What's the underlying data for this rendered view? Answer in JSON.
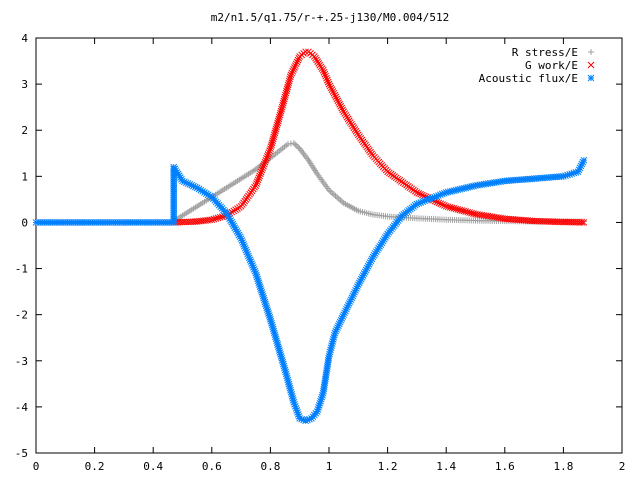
{
  "chart_data": {
    "type": "scatter",
    "title": "m2/n1.5/q1.75/r-+.25-j130/M0.004/512",
    "xlabel": "",
    "ylabel": "",
    "xlim": [
      0,
      2
    ],
    "ylim": [
      -5,
      4
    ],
    "x_ticks": [
      "0",
      "0.2",
      "0.4",
      "0.6",
      "0.8",
      "1",
      "1.2",
      "1.4",
      "1.6",
      "1.8",
      "2"
    ],
    "y_ticks": [
      "-5",
      "-4",
      "-3",
      "-2",
      "-1",
      "0",
      "1",
      "2",
      "3",
      "4"
    ],
    "grid": false,
    "legend_position": "top-right",
    "series": [
      {
        "name": "R stress/E",
        "marker": "plus",
        "color": "#a0a0a0",
        "x": [
          0.47,
          0.5,
          0.55,
          0.6,
          0.65,
          0.7,
          0.75,
          0.8,
          0.83,
          0.86,
          0.88,
          0.9,
          0.93,
          0.96,
          1.0,
          1.05,
          1.1,
          1.15,
          1.2,
          1.3,
          1.4,
          1.5,
          1.6,
          1.7,
          1.8,
          1.87
        ],
        "y": [
          0.02,
          0.15,
          0.35,
          0.55,
          0.75,
          0.95,
          1.15,
          1.4,
          1.55,
          1.7,
          1.72,
          1.6,
          1.35,
          1.05,
          0.7,
          0.42,
          0.25,
          0.17,
          0.13,
          0.09,
          0.06,
          0.04,
          0.03,
          0.02,
          0.02,
          0.02
        ]
      },
      {
        "name": "G work/E",
        "marker": "cross",
        "color": "#ff0000",
        "x": [
          0.47,
          0.55,
          0.6,
          0.65,
          0.7,
          0.75,
          0.8,
          0.84,
          0.87,
          0.9,
          0.92,
          0.93,
          0.95,
          0.98,
          1.0,
          1.05,
          1.1,
          1.15,
          1.2,
          1.3,
          1.4,
          1.5,
          1.6,
          1.7,
          1.8,
          1.87
        ],
        "y": [
          0.0,
          0.02,
          0.06,
          0.15,
          0.35,
          0.8,
          1.6,
          2.5,
          3.2,
          3.6,
          3.7,
          3.7,
          3.6,
          3.3,
          3.0,
          2.4,
          1.9,
          1.45,
          1.1,
          0.65,
          0.35,
          0.18,
          0.08,
          0.03,
          0.01,
          0.0
        ]
      },
      {
        "name": "Acoustic flux/E",
        "marker": "star",
        "color": "#0080ff",
        "x": [
          0.0,
          0.1,
          0.2,
          0.3,
          0.4,
          0.47,
          0.47,
          0.5,
          0.55,
          0.6,
          0.65,
          0.7,
          0.75,
          0.8,
          0.85,
          0.88,
          0.9,
          0.92,
          0.94,
          0.96,
          0.98,
          1.0,
          1.02,
          1.05,
          1.1,
          1.15,
          1.2,
          1.25,
          1.3,
          1.4,
          1.5,
          1.6,
          1.7,
          1.8,
          1.85,
          1.87
        ],
        "y": [
          0.0,
          0.0,
          0.0,
          0.0,
          0.0,
          0.0,
          1.2,
          0.9,
          0.75,
          0.55,
          0.2,
          -0.35,
          -1.1,
          -2.1,
          -3.2,
          -3.9,
          -4.25,
          -4.3,
          -4.25,
          -4.1,
          -3.7,
          -2.9,
          -2.4,
          -2.0,
          -1.35,
          -0.75,
          -0.25,
          0.15,
          0.4,
          0.65,
          0.8,
          0.9,
          0.95,
          1.0,
          1.1,
          1.35
        ]
      }
    ]
  }
}
